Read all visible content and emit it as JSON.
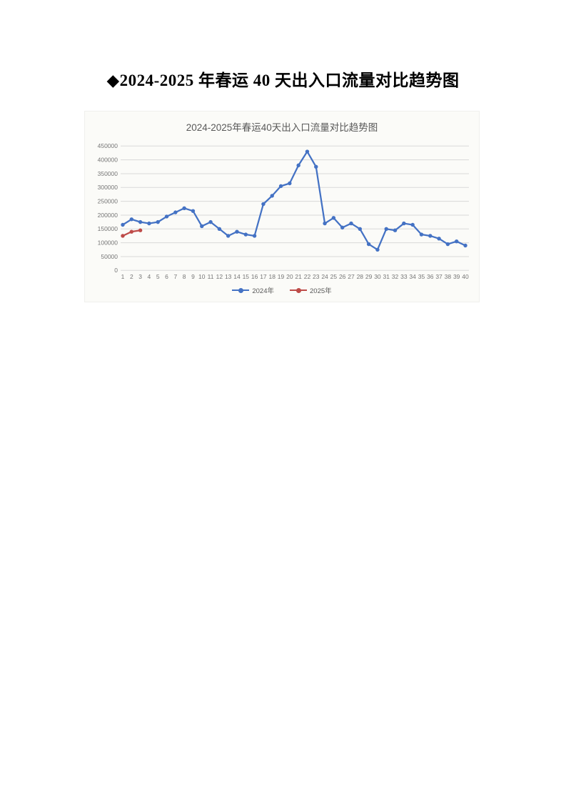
{
  "document": {
    "title": "◆2024-2025 年春运 40 天出入口流量对比趋势图"
  },
  "chart": {
    "title": "2024-2025年春运40天出入口流量对比趋势图",
    "panel_background": "#FBFBF8"
  },
  "chart_data": {
    "type": "line",
    "title": "2024-2025年春运40天出入口流量对比趋势图",
    "x": [
      1,
      2,
      3,
      4,
      5,
      6,
      7,
      8,
      9,
      10,
      11,
      12,
      13,
      14,
      15,
      16,
      17,
      18,
      19,
      20,
      21,
      22,
      23,
      24,
      25,
      26,
      27,
      28,
      29,
      30,
      31,
      32,
      33,
      34,
      35,
      36,
      37,
      38,
      39,
      40
    ],
    "xlabel": "",
    "ylabel": "",
    "ylim": [
      0,
      450000
    ],
    "yticks": [
      0,
      50000,
      100000,
      150000,
      200000,
      250000,
      300000,
      350000,
      400000,
      450000
    ],
    "grid": true,
    "gridline_color": "#D9D9D9",
    "axis_text_color": "#767676",
    "title_color": "#595959",
    "legend_position": "bottom",
    "series": [
      {
        "name": "2024年",
        "color": "#4472C4",
        "values": [
          165000,
          185000,
          175000,
          170000,
          175000,
          195000,
          210000,
          225000,
          215000,
          160000,
          175000,
          150000,
          125000,
          140000,
          130000,
          125000,
          240000,
          270000,
          305000,
          315000,
          380000,
          430000,
          375000,
          170000,
          190000,
          155000,
          170000,
          150000,
          95000,
          75000,
          150000,
          145000,
          170000,
          165000,
          130000,
          125000,
          115000,
          95000,
          105000,
          90000
        ]
      },
      {
        "name": "2025年",
        "color": "#BE4B48",
        "values": [
          125000,
          140000,
          145000
        ]
      }
    ]
  }
}
